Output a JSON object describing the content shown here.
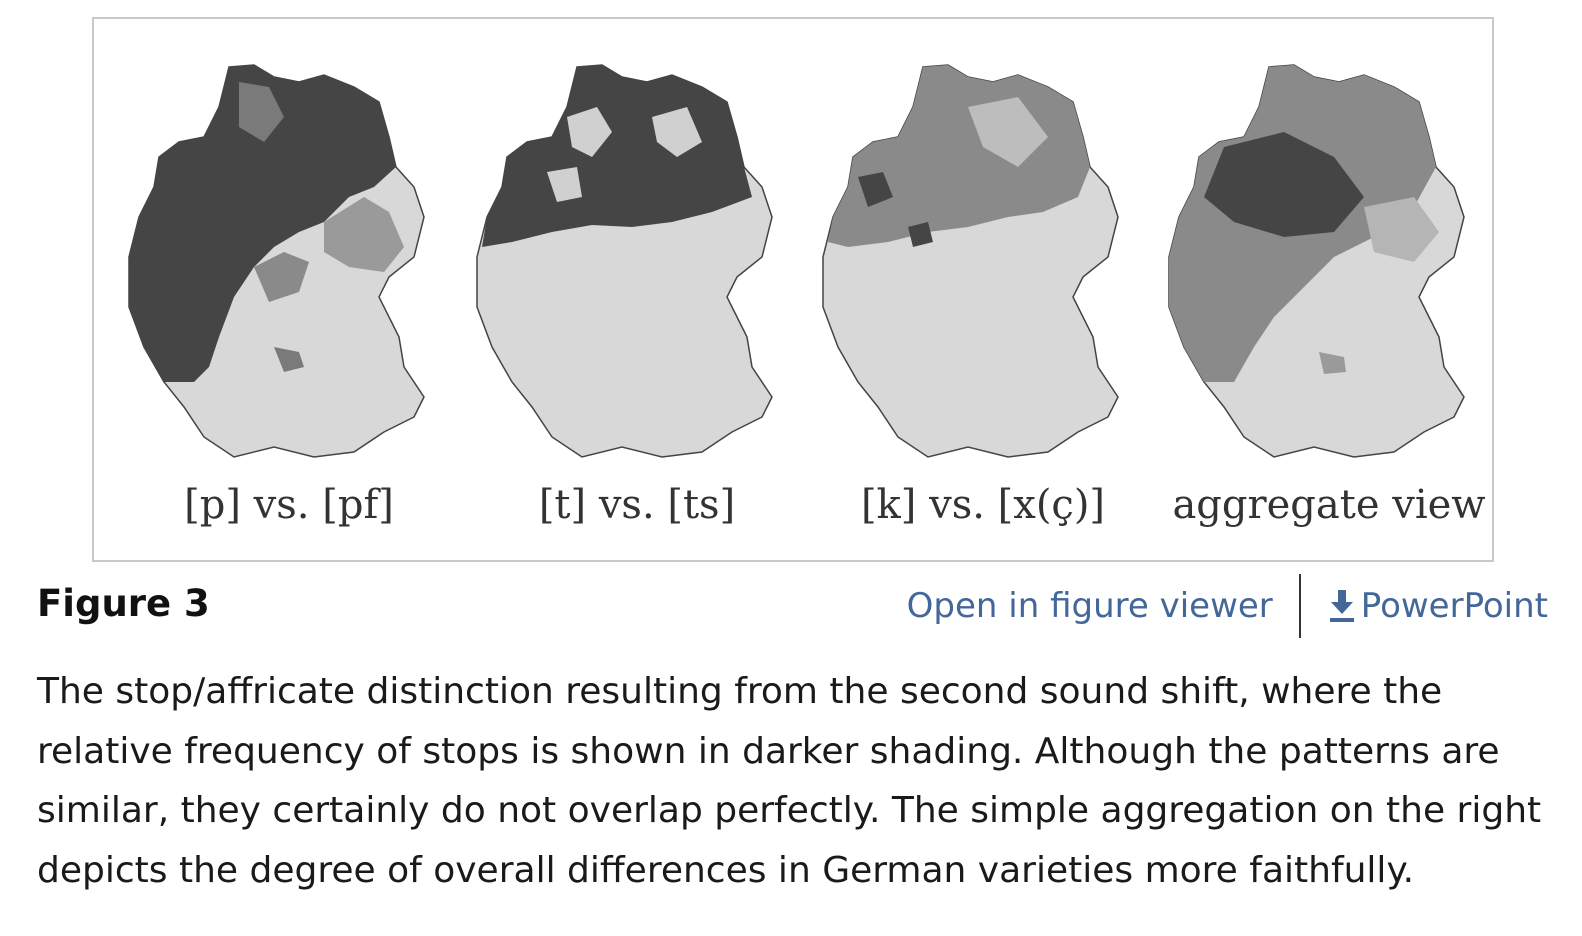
{
  "figure": {
    "panels": [
      {
        "label": "[p] vs. [pf]"
      },
      {
        "label": "[t] vs. [ts]"
      },
      {
        "label": "[k] vs. [x(ç)]"
      },
      {
        "label": "aggregate view"
      }
    ],
    "colors": {
      "dark": "#454545",
      "mid": "#7a7a7a",
      "light": "#d8d8d8",
      "frame": "#c9c9c9"
    }
  },
  "title": "Figure 3",
  "actions": {
    "open_viewer": "Open in figure viewer",
    "powerpoint": "PowerPoint",
    "link_color": "#44679a"
  },
  "caption": "The stop/affricate distinction resulting from the second sound shift, where the relative frequency of stops is shown in darker shading. Although the patterns are similar, they certainly do not overlap perfectly. The simple aggregation on the right depicts the degree of overall differences in German varieties more faithfully."
}
